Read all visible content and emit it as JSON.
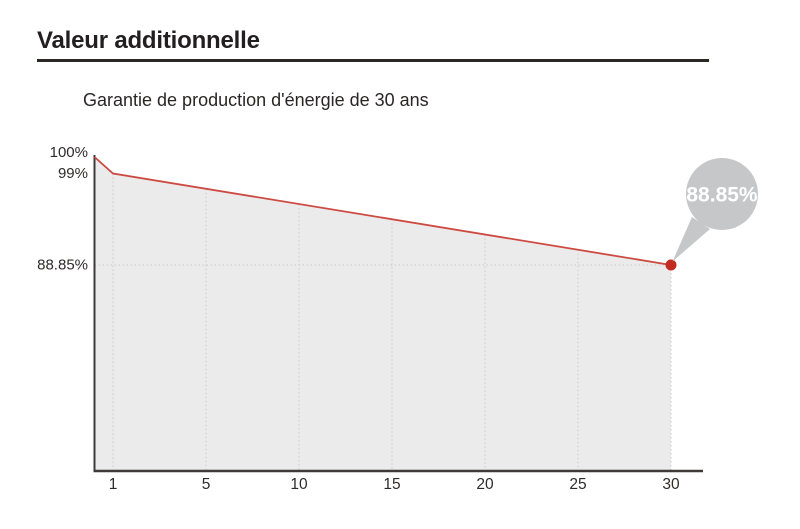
{
  "header": {
    "title": "Valeur additionnelle"
  },
  "chart": {
    "subtitle": "Garantie de production d'énergie de 30 ans"
  },
  "chart_data": {
    "type": "area",
    "title": "Garantie de production d'énergie de 30 ans",
    "xlabel": "",
    "ylabel": "",
    "x_ticks": [
      "1",
      "5",
      "10",
      "15",
      "20",
      "25",
      "30"
    ],
    "x_range_years": [
      0,
      30
    ],
    "y_ticks": [
      {
        "value": 100,
        "label": "100%"
      },
      {
        "value": 99,
        "label": "99%"
      },
      {
        "value": 88.85,
        "label": "88.85%"
      }
    ],
    "points": [
      {
        "year": 0,
        "value": 100
      },
      {
        "year": 1,
        "value": 99
      },
      {
        "year": 30,
        "value": 88.85
      }
    ],
    "end_point": {
      "year": 30,
      "value": 88.85
    },
    "callout_label": "88.85%",
    "grid": true,
    "legend": null,
    "colors": {
      "line": "#cd4a42",
      "point": "#c32a20",
      "area_fill": "#ebebeb",
      "grid": "#c9c9c9",
      "axis": "#3d3a39",
      "tick_text": "#2e2b2a",
      "callout_bubble": "#c5c7c9",
      "callout_text": "#ffffff",
      "title_text": "#231f20"
    }
  }
}
